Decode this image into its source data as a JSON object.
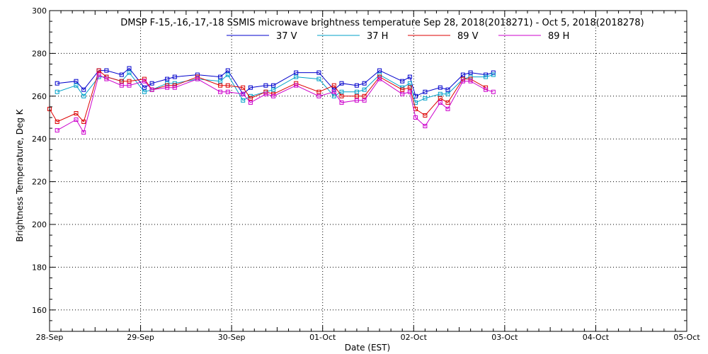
{
  "chart_data": {
    "type": "line",
    "title": "DMSP F-15,-16,-17,-18 SSMIS microwave brightness temperature Sep 28, 2018(2018271) - Oct  5, 2018(2018278)",
    "xlabel": "Date (EST)",
    "ylabel": "Brightness Temperature, Deg K",
    "ylim": [
      150,
      300
    ],
    "yticks": [
      160,
      180,
      200,
      220,
      240,
      260,
      280,
      300
    ],
    "xlim": [
      "2018-09-28 00:00",
      "2018-10-05 00:00"
    ],
    "xticks": [
      {
        "value": "2018-09-28",
        "label": "28-Sep"
      },
      {
        "value": "2018-09-29",
        "label": "29-Sep"
      },
      {
        "value": "2018-09-30",
        "label": "30-Sep"
      },
      {
        "value": "2018-10-01",
        "label": "01-Oct"
      },
      {
        "value": "2018-10-02",
        "label": "02-Oct"
      },
      {
        "value": "2018-10-03",
        "label": "03-Oct"
      },
      {
        "value": "2018-10-04",
        "label": "04-Oct"
      },
      {
        "value": "2018-10-05",
        "label": "05-Oct"
      }
    ],
    "grid": true,
    "legend_position": "top",
    "marker": "square",
    "series": [
      {
        "name": "37 V",
        "color": "#0000cc",
        "points": [
          {
            "x": "2018-09-28 02:00",
            "y": 266
          },
          {
            "x": "2018-09-28 07:00",
            "y": 267
          },
          {
            "x": "2018-09-28 09:00",
            "y": 263
          },
          {
            "x": "2018-09-28 13:00",
            "y": 272
          },
          {
            "x": "2018-09-28 15:00",
            "y": 272
          },
          {
            "x": "2018-09-28 19:00",
            "y": 270
          },
          {
            "x": "2018-09-28 21:00",
            "y": 273
          },
          {
            "x": "2018-09-29 01:00",
            "y": 264
          },
          {
            "x": "2018-09-29 03:00",
            "y": 266
          },
          {
            "x": "2018-09-29 07:00",
            "y": 268
          },
          {
            "x": "2018-09-29 09:00",
            "y": 269
          },
          {
            "x": "2018-09-29 15:00",
            "y": 270
          },
          {
            "x": "2018-09-29 21:00",
            "y": 269
          },
          {
            "x": "2018-09-29 23:00",
            "y": 272
          },
          {
            "x": "2018-09-30 03:00",
            "y": 261
          },
          {
            "x": "2018-09-30 05:00",
            "y": 264
          },
          {
            "x": "2018-09-30 09:00",
            "y": 265
          },
          {
            "x": "2018-09-30 11:00",
            "y": 265
          },
          {
            "x": "2018-09-30 17:00",
            "y": 271
          },
          {
            "x": "2018-09-30 23:00",
            "y": 271
          },
          {
            "x": "2018-10-01 03:00",
            "y": 263
          },
          {
            "x": "2018-10-01 05:00",
            "y": 266
          },
          {
            "x": "2018-10-01 09:00",
            "y": 265
          },
          {
            "x": "2018-10-01 11:00",
            "y": 266
          },
          {
            "x": "2018-10-01 15:00",
            "y": 272
          },
          {
            "x": "2018-10-01 21:00",
            "y": 267
          },
          {
            "x": "2018-10-01 23:00",
            "y": 269
          },
          {
            "x": "2018-10-02 00:30",
            "y": 260
          },
          {
            "x": "2018-10-02 03:00",
            "y": 262
          },
          {
            "x": "2018-10-02 07:00",
            "y": 264
          },
          {
            "x": "2018-10-02 09:00",
            "y": 263
          },
          {
            "x": "2018-10-02 13:00",
            "y": 270
          },
          {
            "x": "2018-10-02 15:00",
            "y": 271
          },
          {
            "x": "2018-10-02 19:00",
            "y": 270
          },
          {
            "x": "2018-10-02 21:00",
            "y": 271
          }
        ]
      },
      {
        "name": "37 H",
        "color": "#00a0c8",
        "points": [
          {
            "x": "2018-09-28 02:00",
            "y": 262
          },
          {
            "x": "2018-09-28 07:00",
            "y": 265
          },
          {
            "x": "2018-09-28 09:00",
            "y": 260
          },
          {
            "x": "2018-09-28 13:00",
            "y": 269
          },
          {
            "x": "2018-09-28 15:00",
            "y": 269
          },
          {
            "x": "2018-09-28 19:00",
            "y": 267
          },
          {
            "x": "2018-09-28 21:00",
            "y": 271
          },
          {
            "x": "2018-09-29 01:00",
            "y": 262
          },
          {
            "x": "2018-09-29 03:00",
            "y": 263
          },
          {
            "x": "2018-09-29 07:00",
            "y": 266
          },
          {
            "x": "2018-09-29 09:00",
            "y": 266
          },
          {
            "x": "2018-09-29 15:00",
            "y": 268
          },
          {
            "x": "2018-09-29 21:00",
            "y": 267
          },
          {
            "x": "2018-09-29 23:00",
            "y": 270
          },
          {
            "x": "2018-09-30 03:00",
            "y": 258
          },
          {
            "x": "2018-09-30 05:00",
            "y": 260
          },
          {
            "x": "2018-09-30 09:00",
            "y": 262
          },
          {
            "x": "2018-09-30 11:00",
            "y": 263
          },
          {
            "x": "2018-09-30 17:00",
            "y": 269
          },
          {
            "x": "2018-09-30 23:00",
            "y": 268
          },
          {
            "x": "2018-10-01 03:00",
            "y": 260
          },
          {
            "x": "2018-10-01 05:00",
            "y": 262
          },
          {
            "x": "2018-10-01 09:00",
            "y": 262
          },
          {
            "x": "2018-10-01 11:00",
            "y": 263
          },
          {
            "x": "2018-10-01 15:00",
            "y": 270
          },
          {
            "x": "2018-10-01 21:00",
            "y": 264
          },
          {
            "x": "2018-10-01 23:00",
            "y": 266
          },
          {
            "x": "2018-10-02 00:30",
            "y": 257
          },
          {
            "x": "2018-10-02 03:00",
            "y": 259
          },
          {
            "x": "2018-10-02 07:00",
            "y": 261
          },
          {
            "x": "2018-10-02 09:00",
            "y": 261
          },
          {
            "x": "2018-10-02 13:00",
            "y": 268
          },
          {
            "x": "2018-10-02 15:00",
            "y": 269
          },
          {
            "x": "2018-10-02 19:00",
            "y": 269
          },
          {
            "x": "2018-10-02 21:00",
            "y": 270
          }
        ]
      },
      {
        "name": "89 V",
        "color": "#dd0000",
        "points": [
          {
            "x": "2018-09-28 00:00",
            "y": 254
          },
          {
            "x": "2018-09-28 02:00",
            "y": 248
          },
          {
            "x": "2018-09-28 07:00",
            "y": 252
          },
          {
            "x": "2018-09-28 09:00",
            "y": 248
          },
          {
            "x": "2018-09-28 13:00",
            "y": 272
          },
          {
            "x": "2018-09-28 15:00",
            "y": 269
          },
          {
            "x": "2018-09-28 19:00",
            "y": 267
          },
          {
            "x": "2018-09-28 21:00",
            "y": 267
          },
          {
            "x": "2018-09-29 01:00",
            "y": 268
          },
          {
            "x": "2018-09-29 03:00",
            "y": 263
          },
          {
            "x": "2018-09-29 07:00",
            "y": 265
          },
          {
            "x": "2018-09-29 09:00",
            "y": 265
          },
          {
            "x": "2018-09-29 15:00",
            "y": 269
          },
          {
            "x": "2018-09-29 21:00",
            "y": 265
          },
          {
            "x": "2018-09-29 23:00",
            "y": 265
          },
          {
            "x": "2018-09-30 03:00",
            "y": 264
          },
          {
            "x": "2018-09-30 05:00",
            "y": 259
          },
          {
            "x": "2018-09-30 09:00",
            "y": 262
          },
          {
            "x": "2018-09-30 11:00",
            "y": 261
          },
          {
            "x": "2018-09-30 17:00",
            "y": 266
          },
          {
            "x": "2018-09-30 23:00",
            "y": 262
          },
          {
            "x": "2018-10-01 03:00",
            "y": 265
          },
          {
            "x": "2018-10-01 05:00",
            "y": 260
          },
          {
            "x": "2018-10-01 09:00",
            "y": 260
          },
          {
            "x": "2018-10-01 11:00",
            "y": 260
          },
          {
            "x": "2018-10-01 15:00",
            "y": 269
          },
          {
            "x": "2018-10-01 21:00",
            "y": 263
          },
          {
            "x": "2018-10-01 23:00",
            "y": 264
          },
          {
            "x": "2018-10-02 00:30",
            "y": 254
          },
          {
            "x": "2018-10-02 03:00",
            "y": 251
          },
          {
            "x": "2018-10-02 07:00",
            "y": 259
          },
          {
            "x": "2018-10-02 09:00",
            "y": 257
          },
          {
            "x": "2018-10-02 13:00",
            "y": 268
          },
          {
            "x": "2018-10-02 15:00",
            "y": 268
          },
          {
            "x": "2018-10-02 19:00",
            "y": 264
          }
        ]
      },
      {
        "name": "89 H",
        "color": "#cc00cc",
        "points": [
          {
            "x": "2018-09-28 02:00",
            "y": 244
          },
          {
            "x": "2018-09-28 07:00",
            "y": 249
          },
          {
            "x": "2018-09-28 09:00",
            "y": 243
          },
          {
            "x": "2018-09-28 13:00",
            "y": 270
          },
          {
            "x": "2018-09-28 15:00",
            "y": 268
          },
          {
            "x": "2018-09-28 19:00",
            "y": 265
          },
          {
            "x": "2018-09-28 21:00",
            "y": 265
          },
          {
            "x": "2018-09-29 01:00",
            "y": 267
          },
          {
            "x": "2018-09-29 03:00",
            "y": 263
          },
          {
            "x": "2018-09-29 07:00",
            "y": 264
          },
          {
            "x": "2018-09-29 09:00",
            "y": 264
          },
          {
            "x": "2018-09-29 15:00",
            "y": 268
          },
          {
            "x": "2018-09-29 21:00",
            "y": 262
          },
          {
            "x": "2018-09-29 23:00",
            "y": 262
          },
          {
            "x": "2018-09-30 03:00",
            "y": 261
          },
          {
            "x": "2018-09-30 05:00",
            "y": 257
          },
          {
            "x": "2018-09-30 09:00",
            "y": 261
          },
          {
            "x": "2018-09-30 11:00",
            "y": 260
          },
          {
            "x": "2018-09-30 17:00",
            "y": 265
          },
          {
            "x": "2018-09-30 23:00",
            "y": 260
          },
          {
            "x": "2018-10-01 03:00",
            "y": 262
          },
          {
            "x": "2018-10-01 05:00",
            "y": 257
          },
          {
            "x": "2018-10-01 09:00",
            "y": 258
          },
          {
            "x": "2018-10-01 11:00",
            "y": 258
          },
          {
            "x": "2018-10-01 15:00",
            "y": 268
          },
          {
            "x": "2018-10-01 21:00",
            "y": 261
          },
          {
            "x": "2018-10-01 23:00",
            "y": 262
          },
          {
            "x": "2018-10-02 00:30",
            "y": 250
          },
          {
            "x": "2018-10-02 03:00",
            "y": 246
          },
          {
            "x": "2018-10-02 07:00",
            "y": 257
          },
          {
            "x": "2018-10-02 09:00",
            "y": 254
          },
          {
            "x": "2018-10-02 13:00",
            "y": 267
          },
          {
            "x": "2018-10-02 15:00",
            "y": 267
          },
          {
            "x": "2018-10-02 19:00",
            "y": 263
          },
          {
            "x": "2018-10-02 21:00",
            "y": 262
          }
        ]
      }
    ]
  }
}
